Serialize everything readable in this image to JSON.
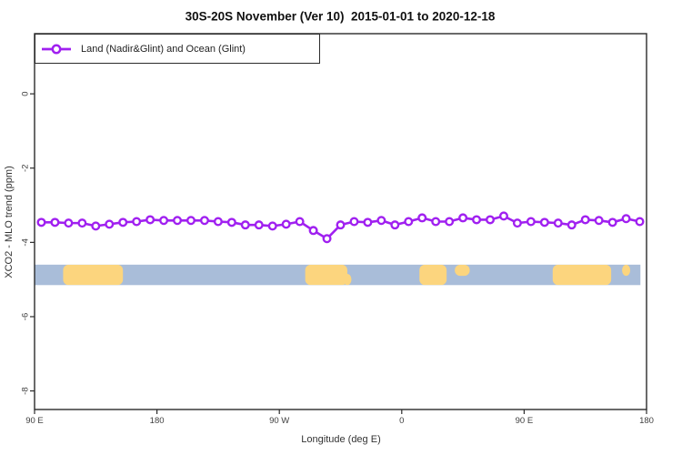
{
  "title": "30S-20S November (Ver 10)  2015-01-01 to 2020-12-18",
  "legend": {
    "label": "Land (Nadir&Glint) and Ocean (Glint)"
  },
  "axes": {
    "x": {
      "label": "Longitude (deg E)",
      "ticks": [
        {
          "pos": 90,
          "label": "90 E"
        },
        {
          "pos": 180,
          "label": "180"
        },
        {
          "pos": 270,
          "label": "90 W"
        },
        {
          "pos": 360,
          "label": "0"
        },
        {
          "pos": 450,
          "label": "90 E"
        },
        {
          "pos": 540,
          "label": "180"
        }
      ]
    },
    "y": {
      "label": "XCO2 - MLO trend (ppm)",
      "ticks": [
        {
          "pos": 0,
          "label": "0"
        },
        {
          "pos": -2,
          "label": "-2"
        },
        {
          "pos": -4,
          "label": "-4"
        },
        {
          "pos": -6,
          "label": "-6"
        },
        {
          "pos": -8,
          "label": "-8"
        }
      ]
    }
  },
  "colors": {
    "series": "#A020F0",
    "ocean": "#a9bdd9",
    "land": "#fcd57e",
    "axis_line": "#2b2b2b",
    "tick_text": "#404040"
  },
  "chart_data": {
    "type": "line",
    "title": "30S-20S November (Ver 10)  2015-01-01 to 2020-12-18",
    "xlabel": "Longitude (deg E)",
    "ylabel": "XCO2 - MLO trend (ppm)",
    "xlim": [
      90,
      540
    ],
    "ylim": [
      -8.5,
      1.62
    ],
    "grid": false,
    "legend_position": "top-left",
    "x_axis_note": "longitude wraps eastward: 90E, 180, 90W, 0, 90E, 180",
    "series": [
      {
        "name": "Land (Nadir&Glint) and Ocean (Glint)",
        "color": "#A020F0",
        "marker": "open-circle",
        "x": [
          95,
          105,
          115,
          125,
          135,
          145,
          155,
          165,
          175,
          185,
          195,
          205,
          215,
          225,
          235,
          245,
          255,
          265,
          275,
          285,
          295,
          305,
          315,
          325,
          335,
          345,
          355,
          365,
          375,
          385,
          395,
          405,
          415,
          425,
          435,
          445,
          455,
          465,
          475,
          485,
          495,
          505,
          515,
          525,
          535
        ],
        "y": [
          -3.46,
          -3.46,
          -3.48,
          -3.48,
          -3.56,
          -3.51,
          -3.46,
          -3.44,
          -3.39,
          -3.41,
          -3.41,
          -3.41,
          -3.41,
          -3.44,
          -3.46,
          -3.53,
          -3.53,
          -3.56,
          -3.51,
          -3.44,
          -3.68,
          -3.9,
          -3.53,
          -3.44,
          -3.46,
          -3.41,
          -3.53,
          -3.44,
          -3.34,
          -3.44,
          -3.44,
          -3.34,
          -3.39,
          -3.39,
          -3.29,
          -3.48,
          -3.44,
          -3.46,
          -3.48,
          -3.53,
          -3.39,
          -3.41,
          -3.46,
          -3.36,
          -3.44
        ]
      }
    ],
    "map_band": {
      "description": "land/ocean strip for latitude band 30S-20S",
      "y_top": -4.6,
      "y_bottom": -5.15,
      "x_from": 90,
      "x_to": 535.5,
      "ocean_color": "#a9bdd9",
      "land_color": "#fcd57e",
      "land_segments": [
        {
          "from": 111,
          "to": 155,
          "part": "full"
        },
        {
          "from": 289,
          "to": 320,
          "part": "full"
        },
        {
          "from": 317,
          "to": 323,
          "part": "bottom"
        },
        {
          "from": 373,
          "to": 393,
          "part": "full"
        },
        {
          "from": 399,
          "to": 410,
          "part": "top"
        },
        {
          "from": 471,
          "to": 514,
          "part": "full"
        },
        {
          "from": 522,
          "to": 528,
          "part": "top"
        }
      ]
    }
  }
}
